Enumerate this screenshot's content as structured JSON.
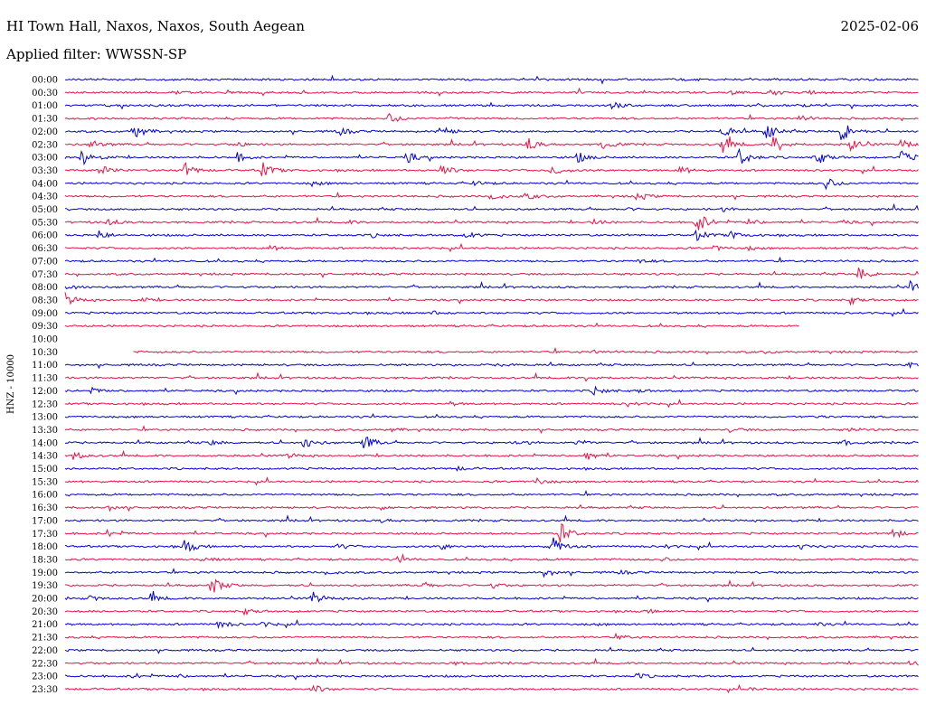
{
  "header": {
    "station": "HI Town Hall, Naxos, Naxos, South Aegean",
    "date": "2025-02-06",
    "filter": "Applied filter: WWSSN-SP"
  },
  "chart_data": {
    "type": "line",
    "ylabel": "HNZ - 10000",
    "colors": {
      "odd": "#0000dd",
      "even": "#ee1144"
    },
    "rows": [
      {
        "label": "00:00",
        "end": 1.0,
        "events": [
          [
            0.72,
            2
          ],
          [
            0.93,
            1
          ]
        ]
      },
      {
        "label": "00:30",
        "end": 1.0,
        "events": [
          [
            0.13,
            2
          ],
          [
            0.78,
            2
          ],
          [
            0.83,
            2
          ],
          [
            0.87,
            2
          ]
        ]
      },
      {
        "label": "01:00",
        "end": 1.0,
        "events": [
          [
            0.64,
            4
          ],
          [
            0.86,
            1
          ]
        ]
      },
      {
        "label": "01:30",
        "end": 1.0,
        "events": [
          [
            0.38,
            6
          ],
          [
            0.45,
            1
          ],
          [
            0.86,
            4
          ]
        ]
      },
      {
        "label": "02:00",
        "end": 1.0,
        "events": [
          [
            0.08,
            10
          ],
          [
            0.32,
            5
          ],
          [
            0.44,
            6
          ],
          [
            0.77,
            8
          ],
          [
            0.82,
            12
          ],
          [
            0.91,
            14
          ]
        ]
      },
      {
        "label": "02:30",
        "end": 1.0,
        "events": [
          [
            0.03,
            5
          ],
          [
            0.2,
            3
          ],
          [
            0.54,
            9
          ],
          [
            0.63,
            6
          ],
          [
            0.77,
            10
          ],
          [
            0.83,
            12
          ],
          [
            0.92,
            8
          ],
          [
            0.98,
            6
          ]
        ]
      },
      {
        "label": "03:00",
        "end": 1.0,
        "events": [
          [
            0.02,
            12
          ],
          [
            0.2,
            6
          ],
          [
            0.4,
            6
          ],
          [
            0.6,
            6
          ],
          [
            0.79,
            12
          ],
          [
            0.88,
            9
          ],
          [
            0.98,
            8
          ]
        ]
      },
      {
        "label": "03:30",
        "end": 1.0,
        "events": [
          [
            0.04,
            7
          ],
          [
            0.14,
            8
          ],
          [
            0.23,
            10
          ],
          [
            0.44,
            7
          ],
          [
            0.57,
            6
          ],
          [
            0.72,
            5
          ]
        ]
      },
      {
        "label": "04:00",
        "end": 1.0,
        "events": [
          [
            0.29,
            3
          ],
          [
            0.48,
            3
          ],
          [
            0.89,
            8
          ]
        ]
      },
      {
        "label": "04:30",
        "end": 1.0,
        "events": [
          [
            0.5,
            5
          ],
          [
            0.54,
            4
          ],
          [
            0.67,
            5
          ]
        ]
      },
      {
        "label": "05:00",
        "end": 1.0,
        "events": [
          [
            0.66,
            1
          ],
          [
            0.77,
            2
          ]
        ]
      },
      {
        "label": "05:30",
        "end": 1.0,
        "events": [
          [
            0.05,
            4
          ],
          [
            0.33,
            2
          ],
          [
            0.62,
            3
          ],
          [
            0.74,
            14
          ],
          [
            0.8,
            4
          ],
          [
            0.91,
            2
          ]
        ]
      },
      {
        "label": "06:00",
        "end": 1.0,
        "events": [
          [
            0.04,
            5
          ],
          [
            0.36,
            2
          ],
          [
            0.47,
            4
          ],
          [
            0.74,
            6
          ],
          [
            0.78,
            4
          ]
        ]
      },
      {
        "label": "06:30",
        "end": 1.0,
        "events": [
          [
            0.24,
            3
          ],
          [
            0.76,
            3
          ],
          [
            0.8,
            2
          ]
        ]
      },
      {
        "label": "07:00",
        "end": 1.0,
        "events": [
          [
            0.67,
            2
          ]
        ]
      },
      {
        "label": "07:30",
        "end": 1.0,
        "events": [
          [
            0.93,
            8
          ]
        ]
      },
      {
        "label": "08:00",
        "end": 1.0,
        "events": [
          [
            0.0,
            5
          ],
          [
            0.99,
            6
          ]
        ]
      },
      {
        "label": "08:30",
        "end": 1.0,
        "events": [
          [
            0.0,
            8
          ],
          [
            0.09,
            2
          ],
          [
            0.92,
            4
          ]
        ]
      },
      {
        "label": "09:00",
        "end": 1.0,
        "events": [
          [
            0.43,
            2
          ]
        ]
      },
      {
        "label": "09:30",
        "end": 0.86,
        "events": []
      },
      {
        "label": "10:00",
        "end": 0.0,
        "events": []
      },
      {
        "label": "10:30",
        "start": 0.08,
        "end": 1.0,
        "events": [
          [
            0.62,
            2
          ],
          [
            0.82,
            1
          ]
        ]
      },
      {
        "label": "11:00",
        "end": 1.0,
        "events": [
          [
            0.51,
            2
          ],
          [
            0.99,
            5
          ]
        ]
      },
      {
        "label": "11:30",
        "end": 1.0,
        "events": [
          [
            0.61,
            3
          ]
        ]
      },
      {
        "label": "12:00",
        "end": 1.0,
        "events": [
          [
            0.03,
            3
          ],
          [
            0.62,
            5
          ],
          [
            0.67,
            2
          ]
        ]
      },
      {
        "label": "12:30",
        "end": 1.0,
        "events": [
          [
            0.45,
            2
          ],
          [
            0.66,
            3
          ]
        ]
      },
      {
        "label": "13:00",
        "end": 1.0,
        "events": [
          [
            0.88,
            1
          ]
        ]
      },
      {
        "label": "13:30",
        "end": 1.0,
        "events": [
          [
            0.38,
            2
          ],
          [
            0.78,
            3
          ],
          [
            0.92,
            2
          ]
        ]
      },
      {
        "label": "14:00",
        "end": 1.0,
        "events": [
          [
            0.17,
            3
          ],
          [
            0.28,
            7
          ],
          [
            0.35,
            9
          ],
          [
            0.53,
            3
          ],
          [
            0.6,
            3
          ],
          [
            0.91,
            3
          ]
        ]
      },
      {
        "label": "14:30",
        "end": 1.0,
        "events": [
          [
            0.01,
            5
          ],
          [
            0.26,
            3
          ],
          [
            0.61,
            6
          ]
        ]
      },
      {
        "label": "15:00",
        "end": 1.0,
        "events": [
          [
            0.46,
            2
          ]
        ]
      },
      {
        "label": "15:30",
        "end": 1.0,
        "events": [
          [
            0.55,
            5
          ]
        ]
      },
      {
        "label": "16:00",
        "end": 1.0,
        "events": []
      },
      {
        "label": "16:30",
        "end": 1.0,
        "events": [
          [
            0.05,
            3
          ],
          [
            0.37,
            2
          ]
        ]
      },
      {
        "label": "17:00",
        "end": 1.0,
        "events": [
          [
            0.37,
            2
          ]
        ]
      },
      {
        "label": "17:30",
        "end": 1.0,
        "events": [
          [
            0.05,
            4
          ],
          [
            0.58,
            12
          ],
          [
            0.97,
            6
          ]
        ]
      },
      {
        "label": "18:00",
        "end": 1.0,
        "events": [
          [
            0.14,
            8
          ],
          [
            0.32,
            3
          ],
          [
            0.44,
            4
          ],
          [
            0.57,
            12
          ],
          [
            0.7,
            3
          ],
          [
            0.86,
            3
          ]
        ]
      },
      {
        "label": "18:30",
        "end": 1.0,
        "events": [
          [
            0.16,
            4
          ],
          [
            0.39,
            4
          ],
          [
            0.7,
            2
          ]
        ]
      },
      {
        "label": "19:00",
        "end": 1.0,
        "events": [
          [
            0.31,
            2
          ],
          [
            0.56,
            5
          ],
          [
            0.65,
            2
          ]
        ]
      },
      {
        "label": "19:30",
        "end": 1.0,
        "events": [
          [
            0.17,
            12
          ],
          [
            0.42,
            3
          ],
          [
            0.5,
            3
          ]
        ]
      },
      {
        "label": "20:00",
        "end": 1.0,
        "events": [
          [
            0.03,
            3
          ],
          [
            0.1,
            5
          ],
          [
            0.29,
            7
          ],
          [
            0.35,
            2
          ]
        ]
      },
      {
        "label": "20:30",
        "end": 1.0,
        "events": [
          [
            0.21,
            3
          ],
          [
            0.68,
            2
          ]
        ]
      },
      {
        "label": "21:00",
        "end": 1.0,
        "events": [
          [
            0.18,
            5
          ],
          [
            0.23,
            3
          ],
          [
            0.62,
            1
          ],
          [
            0.88,
            2
          ]
        ]
      },
      {
        "label": "21:30",
        "end": 1.0,
        "events": [
          [
            0.65,
            2
          ]
        ]
      },
      {
        "label": "22:00",
        "end": 1.0,
        "events": []
      },
      {
        "label": "22:30",
        "end": 1.0,
        "events": [
          [
            0.45,
            2
          ],
          [
            0.99,
            5
          ]
        ]
      },
      {
        "label": "23:00",
        "end": 1.0,
        "events": [
          [
            0.08,
            3
          ],
          [
            0.13,
            2
          ],
          [
            0.67,
            3
          ]
        ]
      },
      {
        "label": "23:30",
        "end": 1.0,
        "events": [
          [
            0.29,
            5
          ],
          [
            0.8,
            2
          ]
        ]
      }
    ]
  }
}
